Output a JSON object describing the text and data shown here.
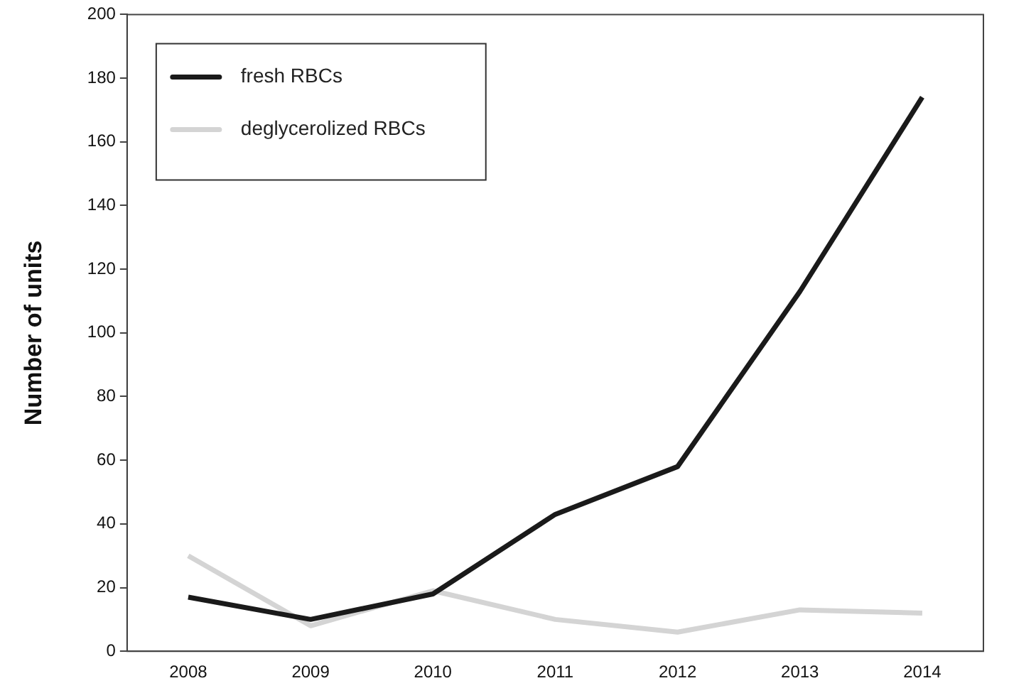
{
  "chart_data": {
    "type": "line",
    "ylabel": "Number of units",
    "categories": [
      "2008",
      "2009",
      "2010",
      "2011",
      "2012",
      "2013",
      "2014"
    ],
    "series": [
      {
        "name": "fresh RBCs",
        "color": "#1a1a1a",
        "values": [
          17,
          10,
          18,
          43,
          58,
          113,
          174
        ]
      },
      {
        "name": "deglycerolized RBCs",
        "color": "#d4d4d4",
        "values": [
          30,
          8,
          19,
          10,
          6,
          13,
          12
        ]
      }
    ],
    "ylim": [
      0,
      200
    ],
    "yticks": [
      0,
      20,
      40,
      60,
      80,
      100,
      120,
      140,
      160,
      180,
      200
    ],
    "grid": false,
    "legend": "top left",
    "marker": "none",
    "line_style": "solid"
  }
}
